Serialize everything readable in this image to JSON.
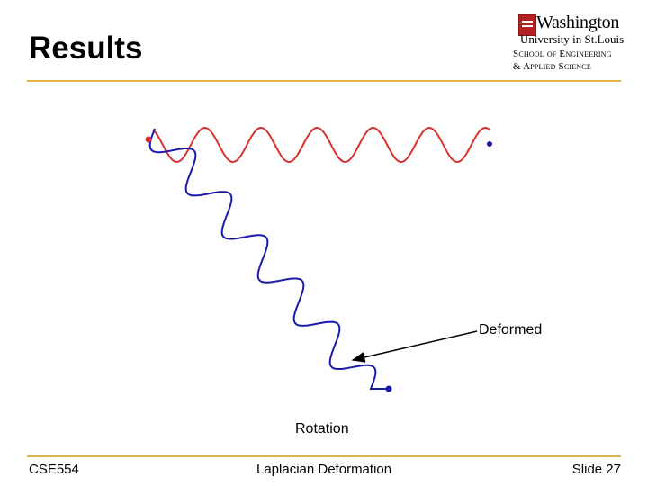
{
  "slide": {
    "title": "Results",
    "number_label": "Slide 27"
  },
  "logo": {
    "line1": "Washington",
    "line2": "University in St.Louis",
    "line3": "School of Engineering",
    "line4": "& Applied Science"
  },
  "labels": {
    "deformed": "Deformed",
    "rotation": "Rotation"
  },
  "footer": {
    "course": "CSE554",
    "topic": "Laplacian Deformation",
    "slide": "Slide 27"
  },
  "colors": {
    "red_curve": "#d93030",
    "blue_curve": "#1a1aa8",
    "rule": "#e0b44a"
  }
}
